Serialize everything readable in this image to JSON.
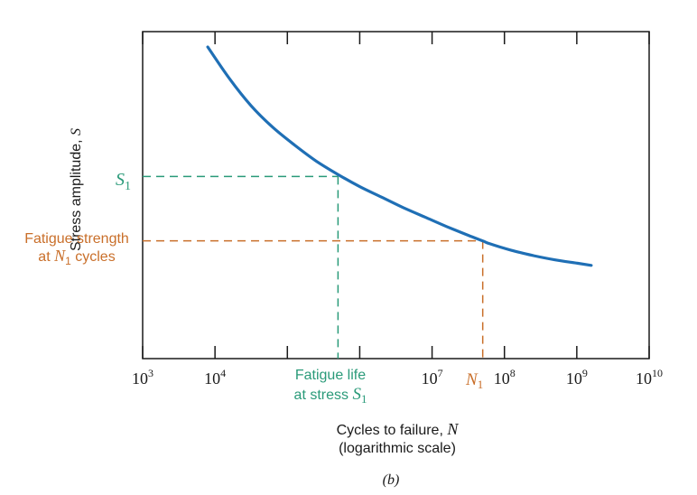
{
  "colors": {
    "curve": "#1f6fb5",
    "s1_guide": "#2a9a79",
    "n1_guide": "#c96f2a",
    "axis": "#1a1a1a",
    "text": "#1a1a1a"
  },
  "chart_data": {
    "type": "line",
    "x_scale": "log",
    "xlim": [
      1000,
      10000000000
    ],
    "x_ticks_exponents": [
      3,
      4,
      5,
      6,
      7,
      8,
      9,
      10
    ],
    "x_tick_labels": [
      {
        "base": "10",
        "exp": "3"
      },
      {
        "base": "10",
        "exp": "4"
      },
      {
        "base": "",
        "exp": ""
      },
      {
        "base": "",
        "exp": ""
      },
      {
        "base": "10",
        "exp": "7"
      },
      {
        "base": "10",
        "exp": "8"
      },
      {
        "base": "10",
        "exp": "9"
      },
      {
        "base": "10",
        "exp": "10"
      }
    ],
    "ylim": [
      0,
      1
    ],
    "y_ticks": [],
    "series": [
      {
        "x": [
          7943,
          15850,
          31620,
          63100,
          125900,
          251200,
          501200,
          1000000,
          1995000,
          3981000,
          7943000,
          15850000,
          31620000,
          50120000,
          63100000,
          125900000,
          251200000,
          501200000,
          1000000000,
          1585000000
        ],
        "y": [
          0.953,
          0.856,
          0.773,
          0.707,
          0.653,
          0.604,
          0.563,
          0.526,
          0.494,
          0.462,
          0.433,
          0.404,
          0.377,
          0.36,
          0.351,
          0.331,
          0.315,
          0.302,
          0.292,
          0.285
        ]
      }
    ],
    "annotations": {
      "s1": {
        "y": 0.557,
        "x_intersect": 501200
      },
      "n1": {
        "x": 50120000,
        "y": 0.36
      }
    },
    "ylabel": {
      "text": "Stress amplitude, ",
      "var": "S"
    },
    "xlabel": {
      "line1": "Cycles to failure, ",
      "var": "N",
      "line2": "(logarithmic scale)"
    },
    "caption": "(b)",
    "labels": {
      "s1_axis": {
        "var": "S",
        "sub": "1"
      },
      "fatigue_strength_line1": "Fatigue strength",
      "fatigue_strength_at": "at ",
      "fatigue_strength_var": "N",
      "fatigue_strength_sub": "1",
      "fatigue_strength_tail": " cycles",
      "fatigue_life_line1": "Fatigue life",
      "fatigue_life_line2": "at stress ",
      "fatigue_life_var": "S",
      "fatigue_life_sub": "1",
      "n1_tick_var": "N",
      "n1_tick_sub": "1"
    }
  }
}
